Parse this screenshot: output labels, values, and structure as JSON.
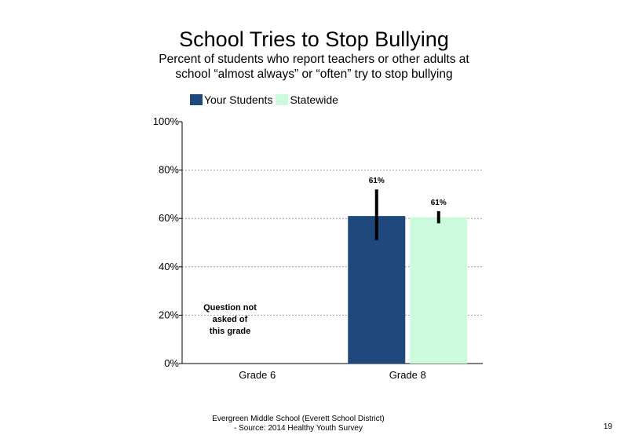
{
  "title": "School Tries to Stop Bullying",
  "subtitle": "Percent of students who report teachers or other adults at school “almost always” or “often” try to stop bullying",
  "annotation": [
    "Question not",
    "asked of",
    "this grade"
  ],
  "footer": {
    "line1": "Evergreen Middle School (Everett School District)",
    "line2": "- Source: 2014 Healthy Youth Survey"
  },
  "page_number": "19",
  "colors": {
    "your_students": "#1f497d",
    "statewide": "#ccfadc",
    "error_bar": "#000000",
    "gridline": "#a6a6a6"
  },
  "chart_data": {
    "type": "bar",
    "title": "School Tries to Stop Bullying",
    "categories": [
      "Grade 6",
      "Grade 8"
    ],
    "ylim": [
      0,
      100
    ],
    "yticks": [
      0,
      20,
      40,
      60,
      80,
      100
    ],
    "ytick_labels": [
      "0%",
      "20%",
      "40%",
      "60%",
      "80%",
      "100%"
    ],
    "grid": true,
    "legend_position": "top-left",
    "series": [
      {
        "name": "Your Students",
        "color": "#1f497d",
        "values": [
          null,
          61
        ],
        "labels": [
          "",
          "61%"
        ],
        "error_low": [
          null,
          51
        ],
        "error_high": [
          null,
          72
        ]
      },
      {
        "name": "Statewide",
        "color": "#ccfadc",
        "values": [
          null,
          60.5
        ],
        "labels": [
          "",
          "61%"
        ],
        "error_low": [
          null,
          58
        ],
        "error_high": [
          null,
          63
        ]
      }
    ]
  }
}
